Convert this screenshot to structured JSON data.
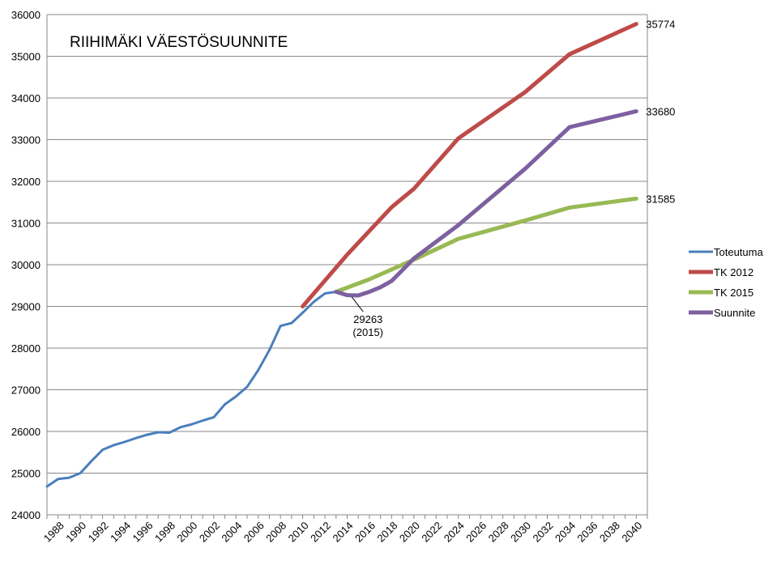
{
  "chart_data": {
    "type": "line",
    "title": "RIIHIMÄKI VÄESTÖSUUNNITE",
    "xlabel": "",
    "ylabel": "",
    "xlim": [
      1987,
      2041
    ],
    "ylim": [
      24000,
      36000
    ],
    "y_ticks": [
      24000,
      25000,
      26000,
      27000,
      28000,
      29000,
      30000,
      31000,
      32000,
      33000,
      34000,
      35000,
      36000
    ],
    "x_ticks": [
      1988,
      1990,
      1992,
      1994,
      1996,
      1998,
      2000,
      2002,
      2004,
      2006,
      2008,
      2010,
      2012,
      2014,
      2016,
      2018,
      2020,
      2022,
      2024,
      2026,
      2028,
      2030,
      2032,
      2034,
      2036,
      2038,
      2040
    ],
    "grid": true,
    "legend_position": "right",
    "series": [
      {
        "name": "Toteutuma",
        "color": "#4a7ebb",
        "x": [
          1987,
          1988,
          1989,
          1990,
          1991,
          1992,
          1993,
          1994,
          1995,
          1996,
          1997,
          1998,
          1999,
          2000,
          2001,
          2002,
          2003,
          2004,
          2005,
          2006,
          2007,
          2008,
          2009,
          2010,
          2011,
          2012,
          2013
        ],
        "values": [
          24680,
          24860,
          24890,
          25000,
          25290,
          25560,
          25670,
          25750,
          25840,
          25920,
          25980,
          25970,
          26100,
          26170,
          26260,
          26340,
          26650,
          26840,
          27070,
          27470,
          27950,
          28530,
          28600,
          28850,
          29110,
          29310,
          29350
        ]
      },
      {
        "name": "TK 2012",
        "color": "#be4b48",
        "x": [
          2010,
          2014,
          2018,
          2020,
          2024,
          2030,
          2034,
          2040
        ],
        "values": [
          29000,
          30240,
          31380,
          31820,
          33030,
          34140,
          35050,
          35774
        ]
      },
      {
        "name": "TK 2015",
        "color": "#98b954",
        "x": [
          2013,
          2016,
          2020,
          2024,
          2030,
          2034,
          2040
        ],
        "values": [
          29350,
          29650,
          30120,
          30620,
          31060,
          31370,
          31585
        ]
      },
      {
        "name": "Suunnite",
        "color": "#7d60a0",
        "x": [
          2013,
          2014,
          2015,
          2016,
          2017,
          2018,
          2020,
          2024,
          2030,
          2034,
          2040
        ],
        "values": [
          29350,
          29270,
          29263,
          29350,
          29460,
          29610,
          30150,
          30950,
          32300,
          33300,
          33680
        ]
      }
    ],
    "end_labels": [
      {
        "series": "TK 2012",
        "text": "35774"
      },
      {
        "series": "Suunnite",
        "text": "33680"
      },
      {
        "series": "TK 2015",
        "text": "31585"
      }
    ],
    "annotation": {
      "line1": "29263",
      "line2": "(2015)",
      "x": 2015,
      "y": 29263
    }
  }
}
